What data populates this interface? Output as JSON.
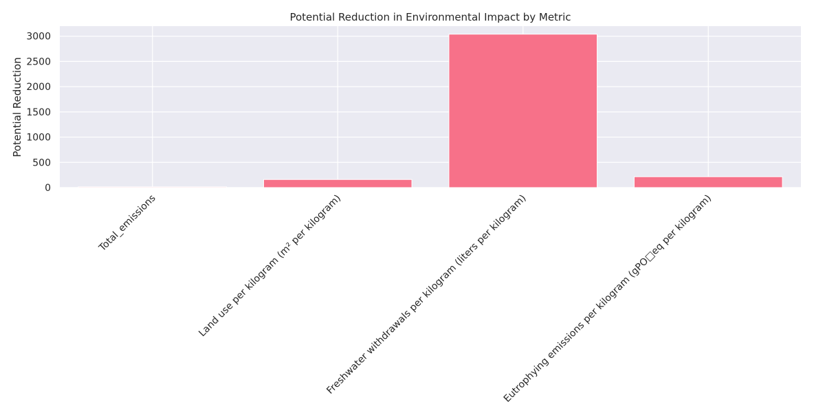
{
  "chart_data": {
    "type": "bar",
    "title": "Potential Reduction in Environmental Impact by Metric",
    "xlabel": "",
    "ylabel": "Potential Reduction",
    "categories": [
      "Total_emissions",
      "Land use per kilogram (m² per kilogram)",
      "Freshwater withdrawals per kilogram (liters per kilogram)",
      "Eutrophying emissions per kilogram (gPO□eq per kilogram)"
    ],
    "values": [
      15,
      160,
      3040,
      215
    ],
    "ylim": [
      0,
      3200
    ],
    "yticks": [
      0,
      500,
      1000,
      1500,
      2000,
      2500,
      3000
    ],
    "grid": true,
    "bar_color": "#f77189",
    "background_color": "#eaeaf2",
    "grid_color": "#ffffff"
  }
}
